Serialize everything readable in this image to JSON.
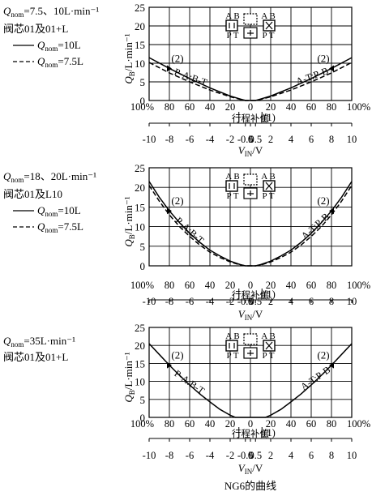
{
  "figure": {
    "caption": "NG6的曲线"
  },
  "chart_data": [
    {
      "type": "line",
      "legend": {
        "title_lines": [
          "Q_nom=7.5、10L·min⁻¹",
          "阀芯01及01+L"
        ],
        "items": [
          {
            "style": "solid",
            "label": "Q_nom=10L"
          },
          {
            "style": "dashed",
            "label": "Q_nom=7.5L"
          }
        ]
      },
      "ylabel": "Q_B/L·min⁻¹",
      "xlabel": "V_IN/V",
      "ylim": [
        0,
        25
      ],
      "y_ticks": [
        0,
        5,
        10,
        15,
        20,
        25
      ],
      "xlim": [
        -10,
        10
      ],
      "x_ticks": [
        -10,
        -8,
        -6,
        -4,
        -2,
        -0.5,
        0,
        0.5,
        2,
        4,
        6,
        8,
        10
      ],
      "percent_ticks": [
        "100%",
        "80",
        "60",
        "40",
        "20",
        "0",
        "20",
        "40",
        "60",
        "80",
        "100%"
      ],
      "annotations": [
        "P-A:B-T",
        "A-T:P-B",
        "(2)",
        "(2)",
        "(1)",
        "行程补偿"
      ],
      "series": [
        {
          "name": "Q_nom=10L",
          "style": "solid",
          "x": [
            -10,
            -8,
            -6,
            -4,
            -2,
            -1,
            -0.5,
            0,
            0.5,
            1,
            2,
            4,
            6,
            8,
            10
          ],
          "y": [
            11.5,
            8.6,
            5.9,
            3.4,
            1.2,
            0.4,
            0,
            0,
            0,
            0.4,
            1.2,
            3.4,
            5.9,
            8.6,
            11.5
          ]
        },
        {
          "name": "Q_nom=7.5L",
          "style": "dashed",
          "x": [
            -10,
            -8,
            -6,
            -4,
            -2,
            -1,
            -0.5,
            0,
            0.5,
            1,
            2,
            4,
            6,
            8,
            10
          ],
          "y": [
            10.2,
            7.4,
            5.0,
            2.8,
            1.0,
            0.3,
            0,
            0,
            0,
            0.3,
            1.0,
            2.8,
            5.0,
            7.4,
            10.2
          ]
        }
      ]
    },
    {
      "type": "line",
      "legend": {
        "title_lines": [
          "Q_nom=18、20L·min⁻¹",
          "阀芯01及L10"
        ],
        "items": [
          {
            "style": "solid",
            "label": "Q_nom=10L"
          },
          {
            "style": "dashed",
            "label": "Q_nom=7.5L"
          }
        ]
      },
      "ylabel": "Q_B/L·min⁻¹",
      "xlabel": "V_IN/V",
      "ylim": [
        0,
        25
      ],
      "y_ticks": [
        0,
        5,
        10,
        15,
        20,
        25
      ],
      "xlim": [
        -10,
        10
      ],
      "x_ticks": [
        -10,
        -8,
        -6,
        -4,
        -2,
        -0.5,
        0,
        0.5,
        2,
        4,
        6,
        8,
        10
      ],
      "percent_ticks": [
        "100%",
        "80",
        "60",
        "40",
        "20",
        "0",
        "20",
        "40",
        "60",
        "80",
        "100%"
      ],
      "annotations": [
        "P-A:B-T",
        "A-T:P-B",
        "(2)",
        "(2)",
        "(1)",
        "行程补偿"
      ],
      "series": [
        {
          "name": "Q_nom=10L",
          "style": "solid",
          "x": [
            -10,
            -9,
            -8,
            -7,
            -6,
            -5,
            -4,
            -3,
            -2,
            -1,
            -0.5,
            0,
            0.5,
            1,
            2,
            3,
            4,
            5,
            6,
            7,
            8,
            9,
            10
          ],
          "y": [
            21.5,
            17.5,
            14.0,
            11.0,
            8.3,
            6.0,
            4.0,
            2.5,
            1.2,
            0.3,
            0,
            0,
            0,
            0.3,
            1.2,
            2.5,
            4.0,
            6.0,
            8.3,
            11.0,
            14.0,
            17.5,
            21.5
          ]
        },
        {
          "name": "Q_nom=7.5L",
          "style": "dashed",
          "x": [
            -10,
            -9,
            -8,
            -7,
            -6,
            -5,
            -4,
            -3,
            -2,
            -1,
            -0.5,
            0,
            0.5,
            1,
            2,
            3,
            4,
            5,
            6,
            7,
            8,
            9,
            10
          ],
          "y": [
            20.5,
            16.5,
            13.0,
            10.0,
            7.5,
            5.3,
            3.5,
            2.1,
            1.0,
            0.2,
            0,
            0,
            0,
            0.2,
            1.0,
            2.1,
            3.5,
            5.3,
            7.5,
            10.0,
            13.0,
            16.5,
            20.5
          ]
        }
      ]
    },
    {
      "type": "line",
      "legend": {
        "title_lines": [
          "Q_nom=35L·min⁻¹",
          "阀芯01及01+L"
        ],
        "items": []
      },
      "ylabel": "Q_B/L·min⁻¹",
      "xlabel": "V_IN/V",
      "ylim": [
        0,
        25
      ],
      "y_ticks": [
        0,
        5,
        10,
        15,
        20,
        25
      ],
      "xlim": [
        -10,
        10
      ],
      "x_ticks": [
        -10,
        -8,
        -6,
        -4,
        -2,
        -0.5,
        0,
        0.5,
        2,
        4,
        6,
        8,
        10
      ],
      "percent_ticks": [
        "100%",
        "80",
        "60",
        "40",
        "20",
        "0",
        "20",
        "40",
        "60",
        "80",
        "100%"
      ],
      "annotations": [
        "P-A:B-T",
        "A-T:P-B",
        "(2)",
        "(2)",
        "(1)",
        "行程补偿"
      ],
      "series": [
        {
          "name": "",
          "style": "solid",
          "x": [
            -10,
            -9,
            -8,
            -7,
            -6,
            -5,
            -4,
            -3,
            -2,
            -1.5,
            -0.5,
            0,
            0.5,
            1.5,
            2,
            3,
            4,
            5,
            6,
            7,
            8,
            9,
            10
          ],
          "y": [
            20.5,
            17.5,
            14.5,
            11.7,
            9.0,
            6.5,
            4.3,
            2.2,
            0.6,
            0,
            0,
            0,
            0,
            0,
            0.6,
            2.2,
            4.3,
            6.5,
            9.0,
            11.7,
            14.5,
            17.5,
            20.5
          ]
        }
      ]
    }
  ]
}
